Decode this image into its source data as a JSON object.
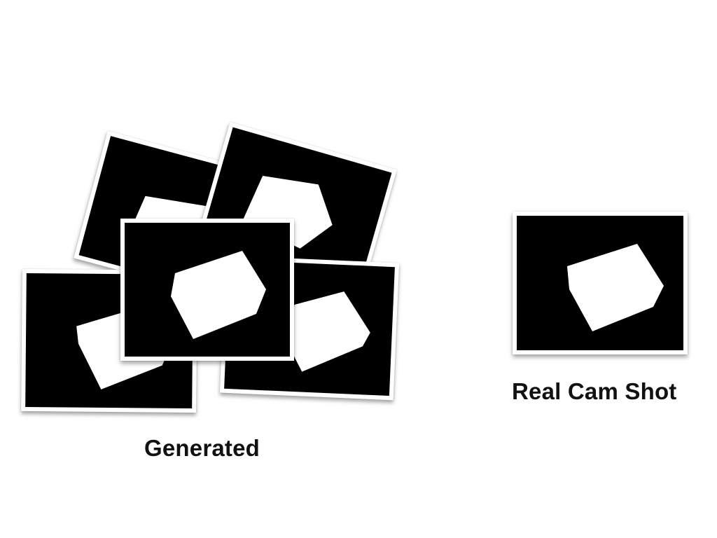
{
  "colors": {
    "background": "#ffffff",
    "frame": "#ffffff",
    "photo_background": "#000000",
    "object": "#ffffff",
    "text": "#111111"
  },
  "labels": {
    "generated": "Generated",
    "real": "Real Cam Shot"
  },
  "groups": {
    "generated": {
      "photo_count": 5,
      "content": "rendered image of a white box on black background"
    },
    "real": {
      "photo_count": 1,
      "content": "camera photo of a white box on black background"
    }
  }
}
